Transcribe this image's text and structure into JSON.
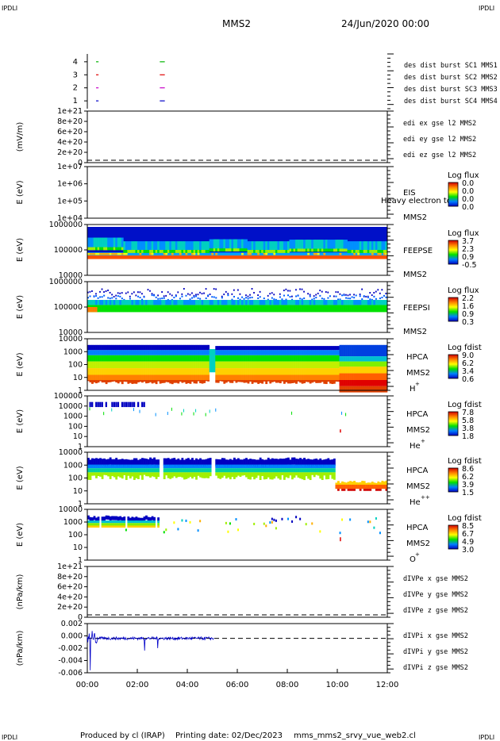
{
  "corner_labels": {
    "tl": "IPDLI",
    "tr": "IPDLI",
    "bl": "IPDLI",
    "br": "IPDLI"
  },
  "header": {
    "spacecraft": "MMS2",
    "date": "24/Jun/2020 00:00"
  },
  "footer": {
    "produced_by": "Produced by cl (IRAP)",
    "printing_date": "Printing date: 02/Dec/2023",
    "script": "mms_mms2_srvy_vue_web2.cl"
  },
  "colors": {
    "sc1": "#0000c8",
    "sc2": "#c800c8",
    "sc3": "#e00000",
    "sc4": "#00b400",
    "x": "#e00000",
    "y": "#00b400",
    "z": "#0000c8"
  },
  "chart_data": [
    {
      "type": "scatter",
      "panel": "burst",
      "yticks": [
        "4",
        "3",
        "2",
        "1"
      ],
      "legend": [
        {
          "text": "des dist burst SC1 MMS1",
          "color": "#0000c8"
        },
        {
          "text": "des dist burst SC2 MMS2",
          "color": "#c800c8"
        },
        {
          "text": "des dist burst SC3 MMS3",
          "color": "#e00000"
        },
        {
          "text": "des dist burst SC4 MMS4",
          "color": "#00b400"
        }
      ],
      "segments": [
        {
          "y": 4,
          "x": [
            0.35,
            0.45
          ],
          "color": "#00b400"
        },
        {
          "y": 4,
          "x": [
            2.9,
            3.1
          ],
          "color": "#00b400"
        },
        {
          "y": 3,
          "x": [
            0.35,
            0.45
          ],
          "color": "#e00000"
        },
        {
          "y": 3,
          "x": [
            2.9,
            3.1
          ],
          "color": "#e00000"
        },
        {
          "y": 2,
          "x": [
            0.35,
            0.45
          ],
          "color": "#c800c8"
        },
        {
          "y": 2,
          "x": [
            2.9,
            3.1
          ],
          "color": "#c800c8"
        },
        {
          "y": 1,
          "x": [
            0.35,
            0.45
          ],
          "color": "#0000c8"
        },
        {
          "y": 1,
          "x": [
            2.9,
            3.1
          ],
          "color": "#0000c8"
        }
      ]
    },
    {
      "type": "line",
      "panel": "edi",
      "ylabel": "(mV/m)",
      "yticks": [
        "1e+21",
        "8e+20",
        "6e+20",
        "4e+20",
        "2e+20",
        "0"
      ],
      "legend": [
        {
          "text": "edi ex gse l2 MMS2",
          "color": "#e00000"
        },
        {
          "text": "edi ey gse l2 MMS2",
          "color": "#00b400"
        },
        {
          "text": "edi ez gse l2 MMS2",
          "color": "#0000c8"
        }
      ],
      "zero_line": true
    },
    {
      "type": "heatmap",
      "panel": "eis",
      "ylabel": "E (eV)",
      "yticks": [
        "1e+07",
        "1e+06",
        "1e+05",
        "1e+04"
      ],
      "instrument": "EIS",
      "overlap_text": "Heavy electron to",
      "sc": "MMS2",
      "colorbar": {
        "title": "Log flux",
        "ticks": [
          "0.0",
          "0.0",
          "0.0",
          "0.0"
        ]
      }
    },
    {
      "type": "heatmap",
      "panel": "feepse",
      "ylabel": "E (eV)",
      "yticks": [
        "1000000",
        "100000",
        "10000"
      ],
      "instrument": "FEEPSE",
      "sc": "MMS2",
      "colorbar": {
        "title": "Log flux",
        "ticks": [
          "3.7",
          "2.3",
          "0.9",
          "-0.5"
        ]
      }
    },
    {
      "type": "heatmap",
      "panel": "feepsi",
      "ylabel": "E (eV)",
      "yticks": [
        "1000000",
        "100000",
        "10000"
      ],
      "instrument": "FEEPSI",
      "sc": "MMS2",
      "colorbar": {
        "title": "Log flux",
        "ticks": [
          "2.2",
          "1.6",
          "0.9",
          "0.3"
        ]
      }
    },
    {
      "type": "heatmap",
      "panel": "hpca_h",
      "ylabel": "E (eV)",
      "yticks": [
        "10000",
        "1000",
        "100",
        "10",
        "1"
      ],
      "instrument": "HPCA",
      "sc": "MMS2",
      "species": "H",
      "charge": "+",
      "colorbar": {
        "title": "Log fdist",
        "ticks": [
          "9.0",
          "6.2",
          "3.4",
          "0.6"
        ]
      }
    },
    {
      "type": "heatmap",
      "panel": "hpca_he",
      "ylabel": "E (eV)",
      "yticks": [
        "100000",
        "10000",
        "1000",
        "100",
        "10",
        "1"
      ],
      "instrument": "HPCA",
      "sc": "MMS2",
      "species": "He",
      "charge": "+",
      "colorbar": {
        "title": "Log fdist",
        "ticks": [
          "7.8",
          "5.8",
          "3.8",
          "1.8"
        ]
      }
    },
    {
      "type": "heatmap",
      "panel": "hpca_hepp",
      "ylabel": "E (eV)",
      "yticks": [
        "10000",
        "1000",
        "100",
        "10",
        "1"
      ],
      "instrument": "HPCA",
      "sc": "MMS2",
      "species": "He",
      "charge": "++",
      "colorbar": {
        "title": "Log fdist",
        "ticks": [
          "8.6",
          "6.2",
          "3.9",
          "1.5"
        ]
      }
    },
    {
      "type": "heatmap",
      "panel": "hpca_o",
      "ylabel": "E (eV)",
      "yticks": [
        "10000",
        "1000",
        "100",
        "10",
        "1"
      ],
      "instrument": "HPCA",
      "sc": "MMS2",
      "species": "O",
      "charge": "+",
      "colorbar": {
        "title": "Log fdist",
        "ticks": [
          "8.5",
          "6.7",
          "4.9",
          "3.0"
        ]
      }
    },
    {
      "type": "line",
      "panel": "divpe",
      "ylabel": "(nPa/km)",
      "yticks": [
        "1e+21",
        "8e+20",
        "6e+20",
        "4e+20",
        "2e+20",
        "0"
      ],
      "legend": [
        {
          "text": "dIVPe x gse MMS2",
          "color": "#e00000"
        },
        {
          "text": "dIVPe y gse MMS2",
          "color": "#00b400"
        },
        {
          "text": "dIVPe z gse MMS2",
          "color": "#0000c8"
        }
      ],
      "zero_line": true
    },
    {
      "type": "line",
      "panel": "divpi",
      "ylabel": "(nPa/km)",
      "yticks": [
        "0.002",
        "0.000",
        "-0.002",
        "-0.004",
        "-0.006"
      ],
      "ylim": [
        -0.007,
        0.003
      ],
      "legend": [
        {
          "text": "dIVPi x gse MMS2",
          "color": "#e00000"
        },
        {
          "text": "dIVPi y gse MMS2",
          "color": "#00b400"
        },
        {
          "text": "dIVPi z gse MMS2",
          "color": "#0000c8"
        }
      ],
      "zero_line": true,
      "series": [
        {
          "name": "dIVPi z gse MMS2",
          "x_range_h": [
            0.0,
            5.05
          ],
          "typical_amplitude": 0.0003,
          "spike_min": -0.0065,
          "spike_max": 0.0015
        }
      ]
    }
  ],
  "xaxis": {
    "ticks": [
      "00:00",
      "02:00",
      "04:00",
      "06:00",
      "08:00",
      "10:00",
      "12:00"
    ],
    "range_h": [
      0,
      12
    ]
  }
}
